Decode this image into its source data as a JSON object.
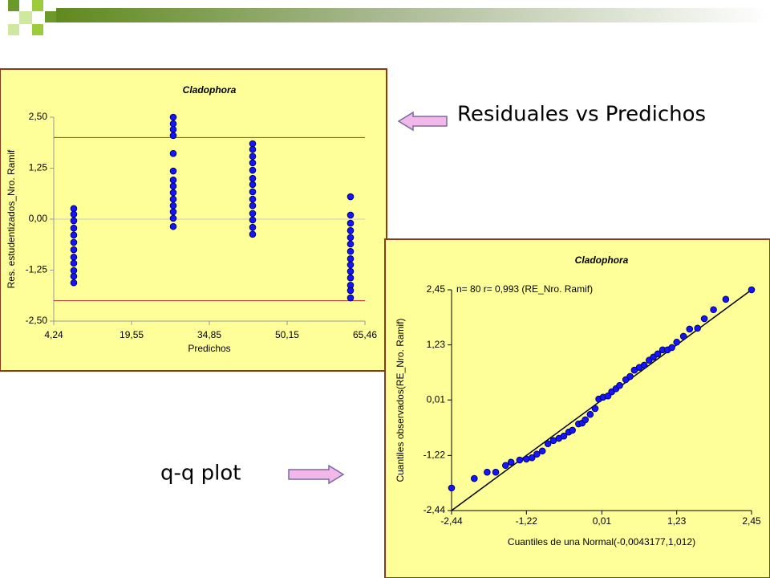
{
  "slide": {
    "annotations": [
      "Residuales vs Predichos",
      "q-q plot"
    ]
  },
  "chart_data": [
    {
      "type": "scatter",
      "title": "Cladophora",
      "xlabel": "Predichos",
      "ylabel": "Res. estudentizados_Nro. Ramif",
      "x": [
        8.18,
        8.18,
        8.18,
        8.18,
        8.18,
        8.18,
        8.18,
        8.18,
        8.18,
        8.18,
        8.18,
        8.18,
        27.75,
        27.75,
        27.75,
        27.75,
        27.75,
        27.75,
        27.75,
        27.75,
        27.75,
        27.75,
        27.75,
        27.75,
        27.75,
        27.75,
        43.37,
        43.37,
        43.37,
        43.37,
        43.37,
        43.37,
        43.37,
        43.37,
        43.37,
        43.37,
        43.37,
        43.37,
        43.37,
        43.37,
        62.62,
        62.62,
        62.62,
        62.62,
        62.62,
        62.62,
        62.62,
        62.62,
        62.62,
        62.62,
        62.62,
        62.62,
        62.62,
        62.62
      ],
      "y": [
        0.26,
        0.12,
        -0.04,
        -0.22,
        -0.39,
        -0.57,
        -0.75,
        -0.93,
        -1.08,
        -1.26,
        -1.4,
        -1.56,
        2.5,
        2.34,
        2.2,
        2.05,
        1.61,
        1.18,
        0.96,
        0.81,
        0.65,
        0.49,
        0.33,
        0.18,
        0.02,
        -0.18,
        1.85,
        1.71,
        1.54,
        1.38,
        1.2,
        1.0,
        0.85,
        0.67,
        0.49,
        0.33,
        0.14,
        -0.02,
        -0.2,
        -0.37,
        0.55,
        0.1,
        -0.1,
        -0.28,
        -0.45,
        -0.61,
        -0.79,
        -0.97,
        -1.12,
        -1.28,
        -1.44,
        -1.62,
        -1.75,
        -1.93
      ],
      "color": "#1414ff",
      "xlim": [
        4.24,
        65.46
      ],
      "ylim": [
        -2.5,
        2.5
      ],
      "xticks": [
        {
          "value": 4.24,
          "label": "4,24"
        },
        {
          "value": 19.55,
          "label": "19,55"
        },
        {
          "value": 34.85,
          "label": "34,85"
        },
        {
          "value": 50.15,
          "label": "50,15"
        },
        {
          "value": 65.46,
          "label": "65,46"
        }
      ],
      "yticks": [
        {
          "value": -2.5,
          "label": "-2,50"
        },
        {
          "value": -1.25,
          "label": "-1,25"
        },
        {
          "value": 0,
          "label": "0,00"
        },
        {
          "value": 1.25,
          "label": "1,25"
        },
        {
          "value": 2.5,
          "label": "2,50"
        }
      ],
      "hlines": [
        2,
        -2
      ],
      "hline_color": "#a52a2a",
      "zero_line": true
    },
    {
      "type": "scatter",
      "title": "Cladophora",
      "annotation": "n= 80 r= 0,993 (RE_Nro. Ramif)",
      "xlabel": "Cuantiles de una Normal(-0,0043177,1,012)",
      "ylabel": "Cuantiles observados(RE_Nro. Ramif)",
      "x": [
        -2.44,
        -2.07,
        -1.86,
        -1.72,
        -1.56,
        -1.47,
        -1.33,
        -1.22,
        -1.13,
        -1.05,
        -0.96,
        -0.87,
        -0.78,
        -0.69,
        -0.61,
        -0.53,
        -0.47,
        -0.37,
        -0.31,
        -0.26,
        -0.18,
        -0.1,
        -0.04,
        0.03,
        0.11,
        0.17,
        0.24,
        0.3,
        0.4,
        0.47,
        0.54,
        0.62,
        0.7,
        0.78,
        0.85,
        0.92,
        1.0,
        1.08,
        1.15,
        1.23,
        1.34,
        1.44,
        1.57,
        1.68,
        1.83,
        2.03,
        2.45
      ],
      "y": [
        -1.94,
        -1.73,
        -1.59,
        -1.59,
        -1.44,
        -1.37,
        -1.32,
        -1.3,
        -1.27,
        -1.19,
        -1.12,
        -0.96,
        -0.89,
        -0.84,
        -0.79,
        -0.7,
        -0.66,
        -0.52,
        -0.5,
        -0.43,
        -0.31,
        -0.18,
        0.03,
        0.07,
        0.1,
        0.19,
        0.26,
        0.33,
        0.46,
        0.53,
        0.67,
        0.73,
        0.78,
        0.89,
        0.96,
        1.03,
        1.12,
        1.12,
        1.17,
        1.29,
        1.42,
        1.58,
        1.6,
        1.81,
        2.01,
        2.24,
        2.45
      ],
      "color": "#1414ff",
      "xlim": [
        -2.44,
        2.45
      ],
      "ylim": [
        -2.44,
        2.45
      ],
      "xticks": [
        {
          "value": -2.44,
          "label": "-2,44"
        },
        {
          "value": -1.22,
          "label": "-1,22"
        },
        {
          "value": 0.01,
          "label": "0,01"
        },
        {
          "value": 1.23,
          "label": "1,23"
        },
        {
          "value": 2.45,
          "label": "2,45"
        }
      ],
      "yticks": [
        {
          "value": -2.44,
          "label": "-2,44"
        },
        {
          "value": -1.22,
          "label": "-1,22"
        },
        {
          "value": 0.01,
          "label": "0,01"
        },
        {
          "value": 1.23,
          "label": "1,23"
        },
        {
          "value": 2.45,
          "label": "2,45"
        }
      ],
      "ref_line": {
        "x": [
          -2.44,
          2.45
        ],
        "y": [
          -2.44,
          2.45
        ]
      }
    }
  ]
}
